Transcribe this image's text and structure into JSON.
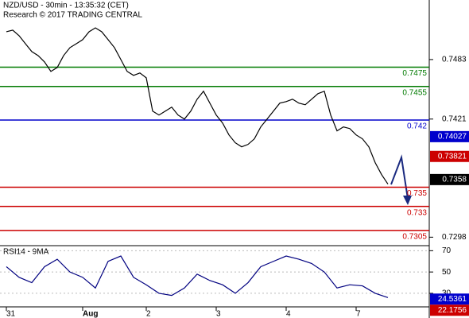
{
  "chart_data": [
    {
      "type": "line",
      "title": "NZD/USD - 30min - 13:35:32 (CET)",
      "subtitle": "Research © 2017 TRADING CENTRAL",
      "categories": [
        "31",
        null,
        null,
        null,
        null,
        null,
        null,
        null,
        null,
        null,
        null,
        null,
        "Aug",
        null,
        null,
        null,
        null,
        null,
        null,
        null,
        null,
        null,
        "2",
        null,
        null,
        null,
        null,
        null,
        null,
        null,
        null,
        null,
        null,
        "3",
        null,
        null,
        null,
        null,
        null,
        null,
        null,
        null,
        null,
        null,
        "4",
        null,
        null,
        null,
        null,
        null,
        null,
        null,
        null,
        null,
        null,
        "7",
        null,
        null,
        null,
        null,
        null
      ],
      "values": [
        0.75119,
        0.75136,
        0.75078,
        0.74995,
        0.74913,
        0.74871,
        0.74805,
        0.74706,
        0.74747,
        0.74871,
        0.74954,
        0.74995,
        0.75037,
        0.75119,
        0.7516,
        0.75119,
        0.75037,
        0.74954,
        0.7483,
        0.74706,
        0.74665,
        0.7469,
        0.7464,
        0.74293,
        0.74252,
        0.74293,
        0.74334,
        0.74252,
        0.7421,
        0.74293,
        0.74417,
        0.745,
        0.74376,
        0.74252,
        0.74169,
        0.74045,
        0.73963,
        0.73921,
        0.73946,
        0.74004,
        0.74128,
        0.7421,
        0.74293,
        0.74376,
        0.74392,
        0.74417,
        0.74376,
        0.74359,
        0.74417,
        0.74475,
        0.745,
        0.74252,
        0.74087,
        0.74128,
        0.74111,
        0.74045,
        0.74004,
        0.73921,
        0.73756,
        0.73632,
        0.73533
      ],
      "color": "#000000",
      "ylim": [
        0.729,
        0.7545
      ],
      "yticks": [
        0.7483,
        0.7421,
        0.7298
      ],
      "levels": [
        {
          "value": 0.7475,
          "color": "#007a00"
        },
        {
          "value": 0.7455,
          "color": "#007a00"
        },
        {
          "value": 0.742,
          "color": "#0000cc"
        },
        {
          "value": 0.735,
          "color": "#cc0000"
        },
        {
          "value": 0.733,
          "color": "#cc0000"
        },
        {
          "value": 0.7305,
          "color": "#cc0000"
        }
      ],
      "markers": [
        {
          "value": 0.74027,
          "color": "#0000cc"
        },
        {
          "value": 0.73821,
          "color": "#cc0000"
        },
        {
          "value": 0.7358,
          "color": "#000000"
        }
      ]
    },
    {
      "type": "line",
      "title": "RSI14 - 9MA",
      "values": [
        55,
        45,
        40,
        55,
        62,
        50,
        45,
        35,
        60,
        65,
        45,
        38,
        30,
        28,
        35,
        48,
        42,
        38,
        30,
        40,
        55,
        60,
        65,
        62,
        58,
        50,
        35,
        38,
        37,
        30,
        26
      ],
      "color": "#000080",
      "ylim": [
        18,
        74
      ],
      "yticks": [
        70,
        50,
        30
      ],
      "markers": [
        {
          "value": 24.5361,
          "color": "#0000cc"
        },
        {
          "value": 22.1756,
          "color": "#cc0000"
        }
      ]
    }
  ]
}
